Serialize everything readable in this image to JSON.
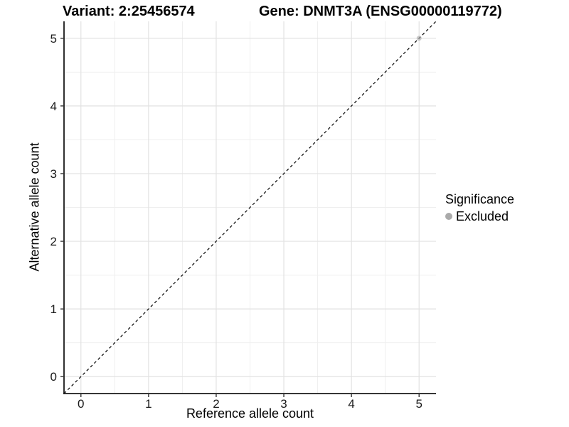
{
  "chart_data": {
    "type": "scatter",
    "title_left": "Variant: 2:25456574",
    "title_right": "Gene: DNMT3A (ENSG00000119772)",
    "xlabel": "Reference allele count",
    "ylabel": "Alternative allele count",
    "xlim": [
      -0.25,
      5.25
    ],
    "ylim": [
      -0.25,
      5.25
    ],
    "xticks": [
      0,
      1,
      2,
      3,
      4,
      5
    ],
    "yticks": [
      0,
      1,
      2,
      3,
      4,
      5
    ],
    "x_minor": [
      0.5,
      1.5,
      2.5,
      3.5,
      4.5
    ],
    "y_minor": [
      0.5,
      1.5,
      2.5,
      3.5,
      4.5
    ],
    "grid": true,
    "reference_line": {
      "kind": "identity",
      "style": "dashed",
      "color": "#000000"
    },
    "series": [
      {
        "name": "Excluded",
        "color": "#aaaaaa",
        "point_opacity": 0.6,
        "points": [
          {
            "x": 5.0,
            "y": 5.0
          }
        ]
      }
    ],
    "legend": {
      "title": "Significance",
      "position": "right",
      "entries": [
        {
          "label": "Excluded",
          "color": "#aaaaaa"
        }
      ]
    },
    "colors": {
      "axis_line": "#1a1a1a",
      "tick_mark": "#333333",
      "tick_label": "#1a1a1a",
      "grid_major": "#e2e2e2",
      "grid_minor": "#efefef",
      "panel_background": "#ffffff"
    }
  }
}
